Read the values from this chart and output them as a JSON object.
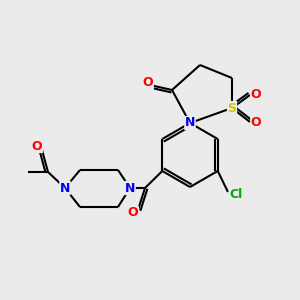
{
  "background_color": "#ebebeb",
  "bond_color": "#000000",
  "atom_colors": {
    "O": "#ff0000",
    "N": "#0000ff",
    "S": "#cccc00",
    "Cl": "#00aa00",
    "C": "#000000"
  },
  "font_size": 9,
  "line_width": 1.5
}
